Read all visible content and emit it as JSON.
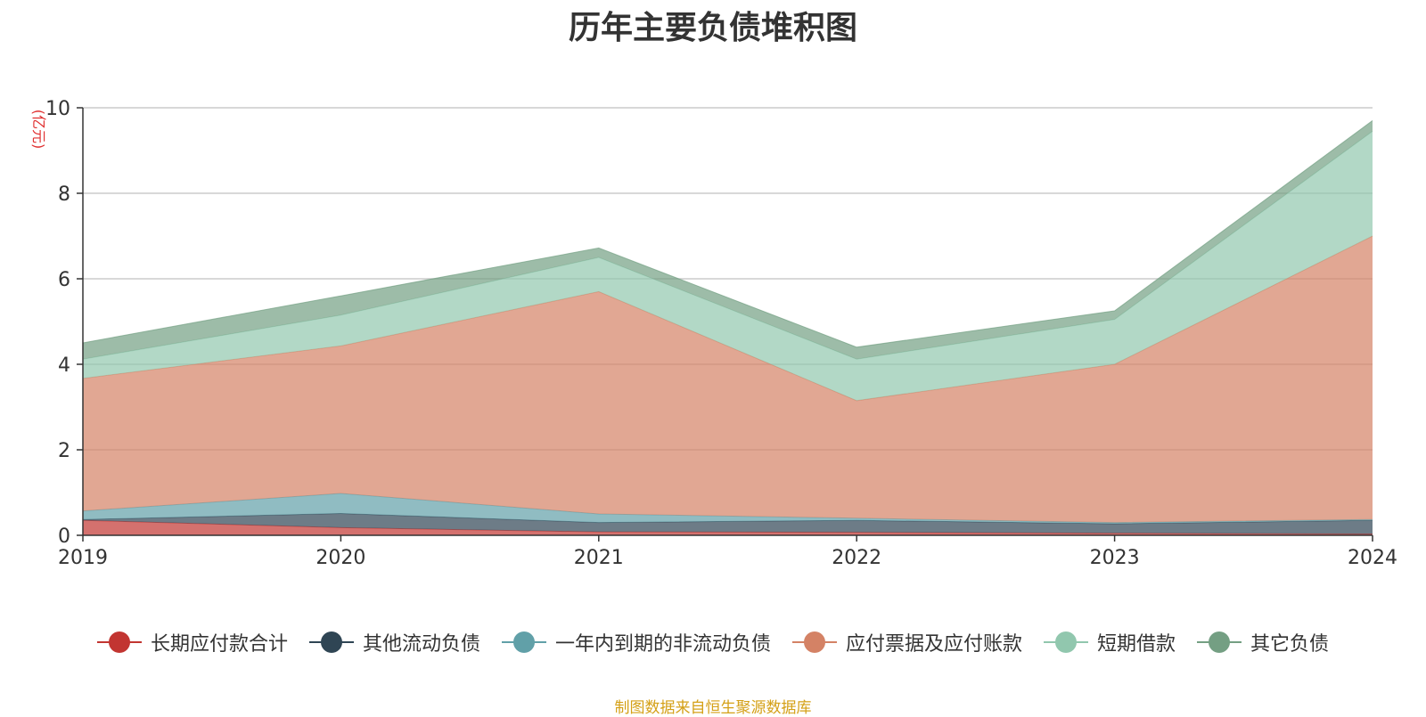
{
  "chart_data": {
    "type": "area",
    "stacked": true,
    "title": "历年主要负债堆积图",
    "ylabel": "(亿元)",
    "xlabel": "",
    "x": [
      "2019",
      "2020",
      "2021",
      "2022",
      "2023",
      "2024"
    ],
    "ylim": [
      0,
      10
    ],
    "yticks": [
      0,
      2,
      4,
      6,
      8,
      10
    ],
    "grid": true,
    "legend_position": "bottom",
    "series": [
      {
        "name": "长期应付款合计",
        "color": "#c23531",
        "values": [
          0.35,
          0.18,
          0.08,
          0.07,
          0.05,
          0.03
        ]
      },
      {
        "name": "其他流动负债",
        "color": "#2f4554",
        "values": [
          0.02,
          0.33,
          0.22,
          0.28,
          0.22,
          0.32
        ]
      },
      {
        "name": "一年内到期的非流动负债",
        "color": "#61a0a8",
        "values": [
          0.2,
          0.47,
          0.2,
          0.05,
          0.03,
          0.02
        ]
      },
      {
        "name": "应付票据及应付账款",
        "color": "#d48265",
        "values": [
          3.1,
          3.45,
          5.2,
          2.75,
          3.7,
          6.63
        ]
      },
      {
        "name": "短期借款",
        "color": "#91c7ae",
        "values": [
          0.45,
          0.72,
          0.8,
          0.97,
          1.05,
          2.45
        ]
      },
      {
        "name": "其它负债",
        "color": "#749f83",
        "values": [
          0.38,
          0.45,
          0.22,
          0.28,
          0.2,
          0.25
        ]
      }
    ]
  },
  "source_note": "制图数据来自恒生聚源数据库"
}
